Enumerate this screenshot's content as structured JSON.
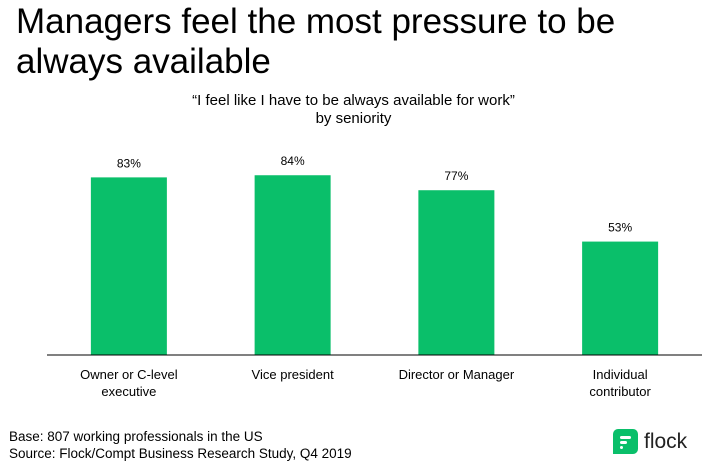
{
  "headline": "Managers feel the most pressure to be always available",
  "subtitle_line1": "“I feel like I have to be always available for work”",
  "subtitle_line2": "by seniority",
  "footer": {
    "base": "Base: 807 working professionals in the US",
    "source": "Source: Flock/Compt Business Research Study, Q4 2019"
  },
  "logo": {
    "text": "flock",
    "icon": "flock-logo-icon"
  },
  "colors": {
    "bar": "#0abf6a",
    "axis": "#000000",
    "logo": "#0abf6a"
  },
  "chart_data": {
    "type": "bar",
    "categories": [
      "Owner or C-level executive",
      "Vice president",
      "Director or Manager",
      "Individual contributor"
    ],
    "values": [
      83,
      84,
      77,
      53
    ],
    "value_labels": [
      "83%",
      "84%",
      "77%",
      "53%"
    ],
    "ylim": [
      0,
      100
    ],
    "grid": false,
    "legend": "none"
  }
}
